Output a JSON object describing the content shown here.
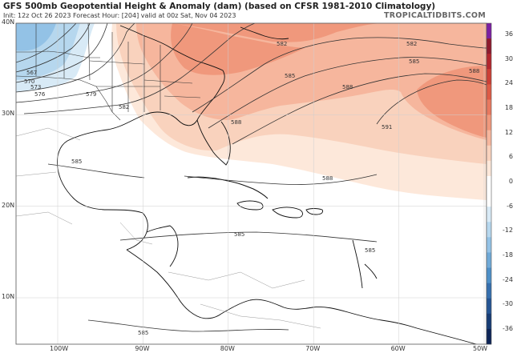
{
  "header": {
    "title": "GFS 500mb Geopotential Height & Anomaly (dam) (based on CFSR 1981-2010 Climatology)",
    "subtitle": "Init: 12z Oct 26 2023   Forecast Hour: [204]   valid at 00z Sat, Nov 04 2023",
    "brand": "TROPICALTIDBITS.COM"
  },
  "axes": {
    "latitudes": [
      {
        "label": "40N",
        "value": 40
      },
      {
        "label": "30N",
        "value": 30
      },
      {
        "label": "20N",
        "value": 20
      },
      {
        "label": "10N",
        "value": 10
      }
    ],
    "longitudes": [
      {
        "label": "100W",
        "value": -100
      },
      {
        "label": "90W",
        "value": -90
      },
      {
        "label": "80W",
        "value": -80
      },
      {
        "label": "70W",
        "value": -70
      },
      {
        "label": "60W",
        "value": -60
      },
      {
        "label": "50W",
        "value": -50
      }
    ]
  },
  "colorbar": {
    "labels": [
      "36",
      "30",
      "24",
      "18",
      "12",
      "6",
      "0",
      "-6",
      "-12",
      "-18",
      "-24",
      "-30",
      "-36"
    ],
    "colors": [
      "#7b1fa2",
      "#8e1b2e",
      "#b3262d",
      "#cc3f35",
      "#dd5a45",
      "#e8785f",
      "#f0987c",
      "#f6b69d",
      "#f9d2bd",
      "#fde8da",
      "#ffffff",
      "#ffffff",
      "#d8eaf6",
      "#b6d7ee",
      "#93c2e6",
      "#6fa9d7",
      "#4d8fc7",
      "#356fae",
      "#245493",
      "#163b74",
      "#0d2557"
    ]
  },
  "contours": {
    "labels": [
      "582",
      "582",
      "585",
      "588",
      "588",
      "591",
      "585",
      "588",
      "588",
      "585",
      "585",
      "585",
      "585",
      "567",
      "570",
      "573",
      "576",
      "579",
      "582"
    ]
  }
}
